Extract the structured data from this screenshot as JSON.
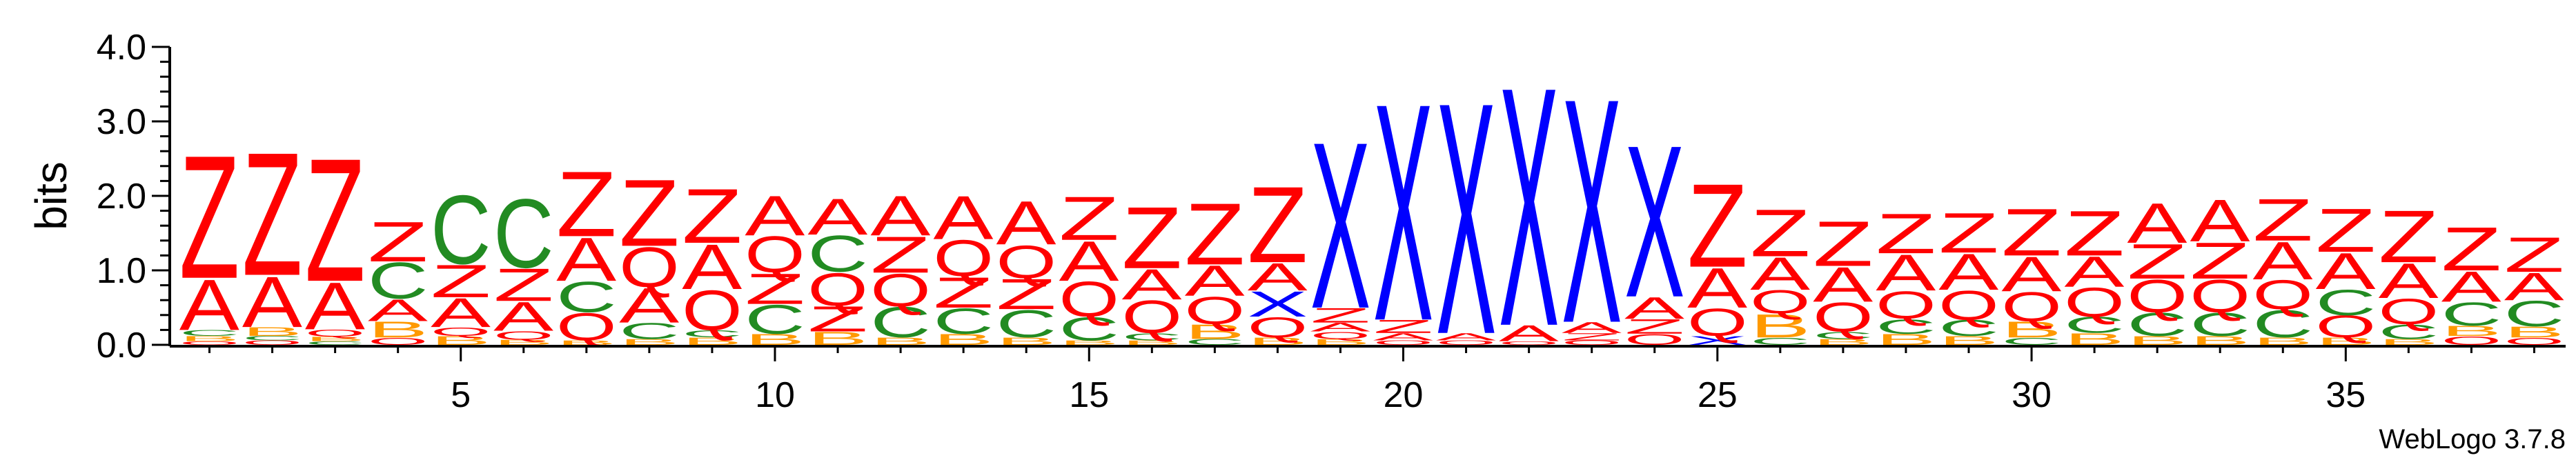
{
  "chart_data": {
    "type": "sequence-logo",
    "ylabel": "bits",
    "ylim": [
      0,
      4.0
    ],
    "yticks": [
      0.0,
      1.0,
      2.0,
      3.0,
      4.0
    ],
    "ytick_labels": [
      "0.0",
      "1.0",
      "2.0",
      "3.0",
      "4.0"
    ],
    "xlim": [
      0.5,
      38.5
    ],
    "xticks": [
      5,
      10,
      15,
      20,
      25,
      30,
      35
    ],
    "xtick_labels": [
      "5",
      "10",
      "15",
      "20",
      "25",
      "30",
      "35"
    ],
    "credit": "WebLogo 3.7.8",
    "colors": {
      "Z": "#ff0000",
      "A": "#ff0000",
      "Q": "#ff0000",
      "C": "#228b22",
      "B": "#ff9900",
      "X": "#0000ff"
    },
    "positions": [
      {
        "pos": 1,
        "stack": [
          {
            "l": "Q",
            "h": 0.05
          },
          {
            "l": "B",
            "h": 0.07
          },
          {
            "l": "C",
            "h": 0.08
          },
          {
            "l": "A",
            "h": 0.7
          },
          {
            "l": "Z",
            "h": 1.7
          }
        ]
      },
      {
        "pos": 2,
        "stack": [
          {
            "l": "Q",
            "h": 0.06
          },
          {
            "l": "C",
            "h": 0.06
          },
          {
            "l": "B",
            "h": 0.12
          },
          {
            "l": "A",
            "h": 0.7
          },
          {
            "l": "Z",
            "h": 1.7
          }
        ]
      },
      {
        "pos": 3,
        "stack": [
          {
            "l": "C",
            "h": 0.05
          },
          {
            "l": "B",
            "h": 0.06
          },
          {
            "l": "Q",
            "h": 0.1
          },
          {
            "l": "A",
            "h": 0.65
          },
          {
            "l": "Z",
            "h": 1.7
          }
        ]
      },
      {
        "pos": 4,
        "stack": [
          {
            "l": "Q",
            "h": 0.1
          },
          {
            "l": "B",
            "h": 0.22
          },
          {
            "l": "A",
            "h": 0.3
          },
          {
            "l": "C",
            "h": 0.5
          },
          {
            "l": "Z",
            "h": 0.55
          }
        ]
      },
      {
        "pos": 5,
        "stack": [
          {
            "l": "B",
            "h": 0.12
          },
          {
            "l": "Q",
            "h": 0.12
          },
          {
            "l": "A",
            "h": 0.4
          },
          {
            "l": "Z",
            "h": 0.45
          },
          {
            "l": "C",
            "h": 0.95
          }
        ]
      },
      {
        "pos": 6,
        "stack": [
          {
            "l": "B",
            "h": 0.07
          },
          {
            "l": "Q",
            "h": 0.12
          },
          {
            "l": "A",
            "h": 0.4
          },
          {
            "l": "Z",
            "h": 0.45
          },
          {
            "l": "C",
            "h": 0.95
          }
        ]
      },
      {
        "pos": 7,
        "stack": [
          {
            "l": "B",
            "h": 0.06
          },
          {
            "l": "Q",
            "h": 0.38
          },
          {
            "l": "C",
            "h": 0.42
          },
          {
            "l": "A",
            "h": 0.6
          },
          {
            "l": "Z",
            "h": 0.9
          }
        ]
      },
      {
        "pos": 8,
        "stack": [
          {
            "l": "B",
            "h": 0.08
          },
          {
            "l": "C",
            "h": 0.22
          },
          {
            "l": "A",
            "h": 0.48
          },
          {
            "l": "Q",
            "h": 0.55
          },
          {
            "l": "Z",
            "h": 0.92
          }
        ]
      },
      {
        "pos": 9,
        "stack": [
          {
            "l": "B",
            "h": 0.1
          },
          {
            "l": "C",
            "h": 0.1
          },
          {
            "l": "Q",
            "h": 0.55
          },
          {
            "l": "A",
            "h": 0.62
          },
          {
            "l": "Z",
            "h": 0.75
          }
        ]
      },
      {
        "pos": 10,
        "stack": [
          {
            "l": "B",
            "h": 0.15
          },
          {
            "l": "C",
            "h": 0.4
          },
          {
            "l": "Z",
            "h": 0.42
          },
          {
            "l": "Q",
            "h": 0.5
          },
          {
            "l": "A",
            "h": 0.55
          }
        ]
      },
      {
        "pos": 11,
        "stack": [
          {
            "l": "B",
            "h": 0.18
          },
          {
            "l": "Z",
            "h": 0.35
          },
          {
            "l": "Q",
            "h": 0.45
          },
          {
            "l": "C",
            "h": 0.5
          },
          {
            "l": "A",
            "h": 0.5
          }
        ]
      },
      {
        "pos": 12,
        "stack": [
          {
            "l": "B",
            "h": 0.1
          },
          {
            "l": "C",
            "h": 0.42
          },
          {
            "l": "Q",
            "h": 0.45
          },
          {
            "l": "Z",
            "h": 0.5
          },
          {
            "l": "A",
            "h": 0.55
          }
        ]
      },
      {
        "pos": 13,
        "stack": [
          {
            "l": "B",
            "h": 0.15
          },
          {
            "l": "C",
            "h": 0.35
          },
          {
            "l": "Z",
            "h": 0.42
          },
          {
            "l": "Q",
            "h": 0.5
          },
          {
            "l": "A",
            "h": 0.6
          }
        ]
      },
      {
        "pos": 14,
        "stack": [
          {
            "l": "B",
            "h": 0.1
          },
          {
            "l": "C",
            "h": 0.38
          },
          {
            "l": "Z",
            "h": 0.42
          },
          {
            "l": "Q",
            "h": 0.45
          },
          {
            "l": "A",
            "h": 0.6
          }
        ]
      },
      {
        "pos": 15,
        "stack": [
          {
            "l": "B",
            "h": 0.06
          },
          {
            "l": "C",
            "h": 0.32
          },
          {
            "l": "Q",
            "h": 0.48
          },
          {
            "l": "A",
            "h": 0.55
          },
          {
            "l": "Z",
            "h": 0.6
          }
        ]
      },
      {
        "pos": 16,
        "stack": [
          {
            "l": "B",
            "h": 0.06
          },
          {
            "l": "C",
            "h": 0.1
          },
          {
            "l": "Q",
            "h": 0.45
          },
          {
            "l": "A",
            "h": 0.42
          },
          {
            "l": "Z",
            "h": 0.85
          }
        ]
      },
      {
        "pos": 17,
        "stack": [
          {
            "l": "C",
            "h": 0.08
          },
          {
            "l": "B",
            "h": 0.2
          },
          {
            "l": "Q",
            "h": 0.38
          },
          {
            "l": "A",
            "h": 0.42
          },
          {
            "l": "Z",
            "h": 0.85
          }
        ]
      },
      {
        "pos": 18,
        "stack": [
          {
            "l": "B",
            "h": 0.1
          },
          {
            "l": "Q",
            "h": 0.28
          },
          {
            "l": "X",
            "h": 0.35
          },
          {
            "l": "A",
            "h": 0.38
          },
          {
            "l": "Z",
            "h": 1.05
          }
        ]
      },
      {
        "pos": 19,
        "stack": [
          {
            "l": "B",
            "h": 0.08
          },
          {
            "l": "Q",
            "h": 0.1
          },
          {
            "l": "A",
            "h": 0.12
          },
          {
            "l": "Z",
            "h": 0.2
          },
          {
            "l": "X",
            "h": 2.3
          }
        ]
      },
      {
        "pos": 20,
        "stack": [
          {
            "l": "Q",
            "h": 0.06
          },
          {
            "l": "A",
            "h": 0.1
          },
          {
            "l": "Z",
            "h": 0.18
          },
          {
            "l": "X",
            "h": 3.0
          }
        ]
      },
      {
        "pos": 21,
        "stack": [
          {
            "l": "Q",
            "h": 0.06
          },
          {
            "l": "A",
            "h": 0.1
          },
          {
            "l": "X",
            "h": 3.2
          }
        ]
      },
      {
        "pos": 22,
        "stack": [
          {
            "l": "Q",
            "h": 0.05
          },
          {
            "l": "A",
            "h": 0.22
          },
          {
            "l": "X",
            "h": 3.3
          }
        ]
      },
      {
        "pos": 23,
        "stack": [
          {
            "l": "Q",
            "h": 0.06
          },
          {
            "l": "Z",
            "h": 0.1
          },
          {
            "l": "A",
            "h": 0.15
          },
          {
            "l": "X",
            "h": 3.1
          }
        ]
      },
      {
        "pos": 24,
        "stack": [
          {
            "l": "Q",
            "h": 0.15
          },
          {
            "l": "Z",
            "h": 0.2
          },
          {
            "l": "A",
            "h": 0.3
          },
          {
            "l": "X",
            "h": 2.1
          }
        ]
      },
      {
        "pos": 25,
        "stack": [
          {
            "l": "X",
            "h": 0.12
          },
          {
            "l": "Q",
            "h": 0.38
          },
          {
            "l": "A",
            "h": 0.55
          },
          {
            "l": "Z",
            "h": 1.15
          }
        ]
      },
      {
        "pos": 26,
        "stack": [
          {
            "l": "C",
            "h": 0.1
          },
          {
            "l": "B",
            "h": 0.32
          },
          {
            "l": "Q",
            "h": 0.32
          },
          {
            "l": "A",
            "h": 0.45
          },
          {
            "l": "Z",
            "h": 0.65
          }
        ]
      },
      {
        "pos": 27,
        "stack": [
          {
            "l": "B",
            "h": 0.08
          },
          {
            "l": "C",
            "h": 0.1
          },
          {
            "l": "Q",
            "h": 0.4
          },
          {
            "l": "A",
            "h": 0.48
          },
          {
            "l": "Z",
            "h": 0.62
          }
        ]
      },
      {
        "pos": 28,
        "stack": [
          {
            "l": "B",
            "h": 0.15
          },
          {
            "l": "C",
            "h": 0.2
          },
          {
            "l": "Q",
            "h": 0.38
          },
          {
            "l": "A",
            "h": 0.5
          },
          {
            "l": "Z",
            "h": 0.55
          }
        ]
      },
      {
        "pos": 29,
        "stack": [
          {
            "l": "B",
            "h": 0.12
          },
          {
            "l": "C",
            "h": 0.22
          },
          {
            "l": "Q",
            "h": 0.4
          },
          {
            "l": "A",
            "h": 0.5
          },
          {
            "l": "Z",
            "h": 0.55
          }
        ]
      },
      {
        "pos": 30,
        "stack": [
          {
            "l": "C",
            "h": 0.1
          },
          {
            "l": "B",
            "h": 0.22
          },
          {
            "l": "Q",
            "h": 0.4
          },
          {
            "l": "A",
            "h": 0.48
          },
          {
            "l": "Z",
            "h": 0.65
          }
        ]
      },
      {
        "pos": 31,
        "stack": [
          {
            "l": "B",
            "h": 0.16
          },
          {
            "l": "C",
            "h": 0.22
          },
          {
            "l": "Q",
            "h": 0.4
          },
          {
            "l": "A",
            "h": 0.42
          },
          {
            "l": "Z",
            "h": 0.62
          }
        ]
      },
      {
        "pos": 32,
        "stack": [
          {
            "l": "B",
            "h": 0.12
          },
          {
            "l": "C",
            "h": 0.32
          },
          {
            "l": "Q",
            "h": 0.45
          },
          {
            "l": "Z",
            "h": 0.48
          },
          {
            "l": "A",
            "h": 0.55
          }
        ]
      },
      {
        "pos": 33,
        "stack": [
          {
            "l": "B",
            "h": 0.12
          },
          {
            "l": "C",
            "h": 0.32
          },
          {
            "l": "Q",
            "h": 0.45
          },
          {
            "l": "Z",
            "h": 0.5
          },
          {
            "l": "A",
            "h": 0.58
          }
        ]
      },
      {
        "pos": 34,
        "stack": [
          {
            "l": "B",
            "h": 0.1
          },
          {
            "l": "C",
            "h": 0.38
          },
          {
            "l": "Q",
            "h": 0.4
          },
          {
            "l": "A",
            "h": 0.52
          },
          {
            "l": "Z",
            "h": 0.58
          }
        ]
      },
      {
        "pos": 35,
        "stack": [
          {
            "l": "B",
            "h": 0.1
          },
          {
            "l": "Q",
            "h": 0.3
          },
          {
            "l": "C",
            "h": 0.35
          },
          {
            "l": "A",
            "h": 0.5
          },
          {
            "l": "Z",
            "h": 0.6
          }
        ]
      },
      {
        "pos": 36,
        "stack": [
          {
            "l": "B",
            "h": 0.08
          },
          {
            "l": "C",
            "h": 0.2
          },
          {
            "l": "Q",
            "h": 0.35
          },
          {
            "l": "A",
            "h": 0.48
          },
          {
            "l": "Z",
            "h": 0.72
          }
        ]
      },
      {
        "pos": 37,
        "stack": [
          {
            "l": "Q",
            "h": 0.12
          },
          {
            "l": "B",
            "h": 0.14
          },
          {
            "l": "C",
            "h": 0.32
          },
          {
            "l": "A",
            "h": 0.42
          },
          {
            "l": "Z",
            "h": 0.6
          }
        ]
      },
      {
        "pos": 38,
        "stack": [
          {
            "l": "Q",
            "h": 0.1
          },
          {
            "l": "B",
            "h": 0.15
          },
          {
            "l": "C",
            "h": 0.35
          },
          {
            "l": "A",
            "h": 0.38
          },
          {
            "l": "Z",
            "h": 0.48
          }
        ]
      }
    ]
  }
}
